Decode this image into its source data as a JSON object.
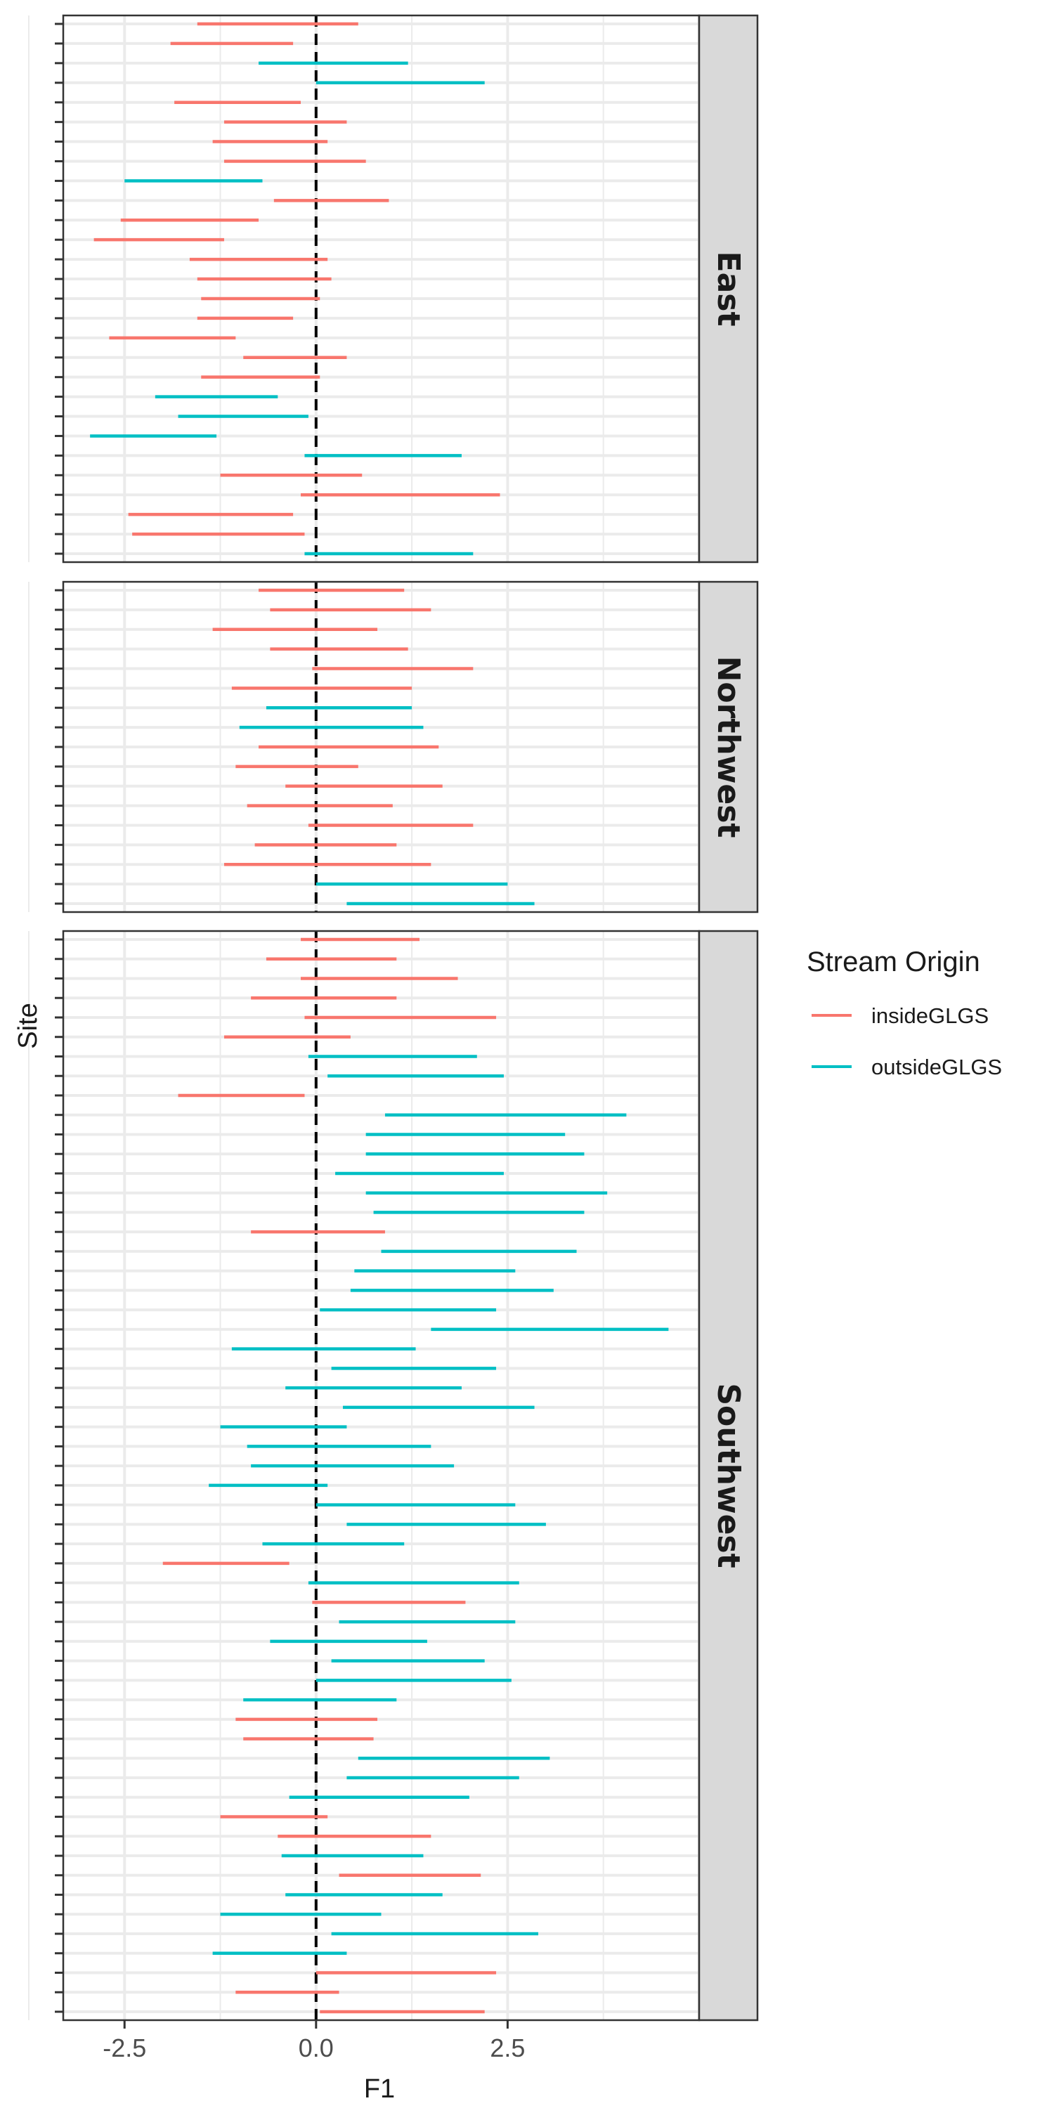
{
  "chart_data": {
    "type": "interval",
    "xlabel": "F1",
    "ylabel": "Site",
    "xlim": [
      -3.3,
      5.0
    ],
    "x_ticks": [
      -2.5,
      0.0,
      2.5
    ],
    "x_tick_labels": [
      "-2.5",
      "0.0",
      "2.5"
    ],
    "reference_line": 0,
    "legend": {
      "title": "Stream Origin",
      "placement": "right",
      "entries": [
        {
          "label": "insideGLGS",
          "color": "#F8766D"
        },
        {
          "label": "outsideGLGS",
          "color": "#00BFC4"
        }
      ]
    },
    "panels": [
      {
        "label": "East",
        "intervals": [
          {
            "origin": "insideGLGS",
            "low": -1.55,
            "high": 0.55
          },
          {
            "origin": "insideGLGS",
            "low": -1.9,
            "high": -0.3
          },
          {
            "origin": "outsideGLGS",
            "low": -0.75,
            "high": 1.2
          },
          {
            "origin": "outsideGLGS",
            "low": 0.0,
            "high": 2.2
          },
          {
            "origin": "insideGLGS",
            "low": -1.85,
            "high": -0.2
          },
          {
            "origin": "insideGLGS",
            "low": -1.2,
            "high": 0.4
          },
          {
            "origin": "insideGLGS",
            "low": -1.35,
            "high": 0.15
          },
          {
            "origin": "insideGLGS",
            "low": -1.2,
            "high": 0.65
          },
          {
            "origin": "outsideGLGS",
            "low": -2.5,
            "high": -0.7
          },
          {
            "origin": "insideGLGS",
            "low": -0.55,
            "high": 0.95
          },
          {
            "origin": "insideGLGS",
            "low": -2.55,
            "high": -0.75
          },
          {
            "origin": "insideGLGS",
            "low": -2.9,
            "high": -1.2
          },
          {
            "origin": "insideGLGS",
            "low": -1.65,
            "high": 0.15
          },
          {
            "origin": "insideGLGS",
            "low": -1.55,
            "high": 0.2
          },
          {
            "origin": "insideGLGS",
            "low": -1.5,
            "high": 0.05
          },
          {
            "origin": "insideGLGS",
            "low": -1.55,
            "high": -0.3
          },
          {
            "origin": "insideGLGS",
            "low": -2.7,
            "high": -1.05
          },
          {
            "origin": "insideGLGS",
            "low": -0.95,
            "high": 0.4
          },
          {
            "origin": "insideGLGS",
            "low": -1.5,
            "high": 0.05
          },
          {
            "origin": "outsideGLGS",
            "low": -2.1,
            "high": -0.5
          },
          {
            "origin": "outsideGLGS",
            "low": -1.8,
            "high": -0.1
          },
          {
            "origin": "outsideGLGS",
            "low": -2.95,
            "high": -1.3
          },
          {
            "origin": "outsideGLGS",
            "low": -0.15,
            "high": 1.9
          },
          {
            "origin": "insideGLGS",
            "low": -1.25,
            "high": 0.6
          },
          {
            "origin": "insideGLGS",
            "low": -0.2,
            "high": 2.4
          },
          {
            "origin": "insideGLGS",
            "low": -2.45,
            "high": -0.3
          },
          {
            "origin": "insideGLGS",
            "low": -2.4,
            "high": -0.15
          },
          {
            "origin": "outsideGLGS",
            "low": -0.15,
            "high": 2.05
          }
        ]
      },
      {
        "label": "Northwest",
        "intervals": [
          {
            "origin": "insideGLGS",
            "low": -0.75,
            "high": 1.15
          },
          {
            "origin": "insideGLGS",
            "low": -0.6,
            "high": 1.5
          },
          {
            "origin": "insideGLGS",
            "low": -1.35,
            "high": 0.8
          },
          {
            "origin": "insideGLGS",
            "low": -0.6,
            "high": 1.2
          },
          {
            "origin": "insideGLGS",
            "low": -0.05,
            "high": 2.05
          },
          {
            "origin": "insideGLGS",
            "low": -1.1,
            "high": 1.25
          },
          {
            "origin": "outsideGLGS",
            "low": -0.65,
            "high": 1.25
          },
          {
            "origin": "outsideGLGS",
            "low": -1.0,
            "high": 1.4
          },
          {
            "origin": "insideGLGS",
            "low": -0.75,
            "high": 1.6
          },
          {
            "origin": "insideGLGS",
            "low": -1.05,
            "high": 0.55
          },
          {
            "origin": "insideGLGS",
            "low": -0.4,
            "high": 1.65
          },
          {
            "origin": "insideGLGS",
            "low": -0.9,
            "high": 1.0
          },
          {
            "origin": "insideGLGS",
            "low": -0.1,
            "high": 2.05
          },
          {
            "origin": "insideGLGS",
            "low": -0.8,
            "high": 1.05
          },
          {
            "origin": "insideGLGS",
            "low": -1.2,
            "high": 1.5
          },
          {
            "origin": "outsideGLGS",
            "low": 0.0,
            "high": 2.5
          },
          {
            "origin": "outsideGLGS",
            "low": 0.4,
            "high": 2.85
          }
        ]
      },
      {
        "label": "Southwest",
        "intervals": [
          {
            "origin": "insideGLGS",
            "low": -0.2,
            "high": 1.35
          },
          {
            "origin": "insideGLGS",
            "low": -0.65,
            "high": 1.05
          },
          {
            "origin": "insideGLGS",
            "low": -0.2,
            "high": 1.85
          },
          {
            "origin": "insideGLGS",
            "low": -0.85,
            "high": 1.05
          },
          {
            "origin": "insideGLGS",
            "low": -0.15,
            "high": 2.35
          },
          {
            "origin": "insideGLGS",
            "low": -1.2,
            "high": 0.45
          },
          {
            "origin": "outsideGLGS",
            "low": -0.1,
            "high": 2.1
          },
          {
            "origin": "outsideGLGS",
            "low": 0.15,
            "high": 2.45
          },
          {
            "origin": "insideGLGS",
            "low": -1.8,
            "high": -0.15
          },
          {
            "origin": "outsideGLGS",
            "low": 0.9,
            "high": 4.05
          },
          {
            "origin": "outsideGLGS",
            "low": 0.65,
            "high": 3.25
          },
          {
            "origin": "outsideGLGS",
            "low": 0.65,
            "high": 3.5
          },
          {
            "origin": "outsideGLGS",
            "low": 0.25,
            "high": 2.45
          },
          {
            "origin": "outsideGLGS",
            "low": 0.65,
            "high": 3.8
          },
          {
            "origin": "outsideGLGS",
            "low": 0.75,
            "high": 3.5
          },
          {
            "origin": "insideGLGS",
            "low": -0.85,
            "high": 0.9
          },
          {
            "origin": "outsideGLGS",
            "low": 0.85,
            "high": 3.4
          },
          {
            "origin": "outsideGLGS",
            "low": 0.5,
            "high": 2.6
          },
          {
            "origin": "outsideGLGS",
            "low": 0.45,
            "high": 3.1
          },
          {
            "origin": "outsideGLGS",
            "low": 0.05,
            "high": 2.35
          },
          {
            "origin": "outsideGLGS",
            "low": 1.5,
            "high": 4.6
          },
          {
            "origin": "outsideGLGS",
            "low": -1.1,
            "high": 1.3
          },
          {
            "origin": "outsideGLGS",
            "low": 0.2,
            "high": 2.35
          },
          {
            "origin": "outsideGLGS",
            "low": -0.4,
            "high": 1.9
          },
          {
            "origin": "outsideGLGS",
            "low": 0.35,
            "high": 2.85
          },
          {
            "origin": "outsideGLGS",
            "low": -1.25,
            "high": 0.4
          },
          {
            "origin": "outsideGLGS",
            "low": -0.9,
            "high": 1.5
          },
          {
            "origin": "outsideGLGS",
            "low": -0.85,
            "high": 1.8
          },
          {
            "origin": "outsideGLGS",
            "low": -1.4,
            "high": 0.15
          },
          {
            "origin": "outsideGLGS",
            "low": 0.0,
            "high": 2.6
          },
          {
            "origin": "outsideGLGS",
            "low": 0.4,
            "high": 3.0
          },
          {
            "origin": "outsideGLGS",
            "low": -0.7,
            "high": 1.15
          },
          {
            "origin": "insideGLGS",
            "low": -2.0,
            "high": -0.35
          },
          {
            "origin": "outsideGLGS",
            "low": -0.1,
            "high": 2.65
          },
          {
            "origin": "insideGLGS",
            "low": -0.05,
            "high": 1.95
          },
          {
            "origin": "outsideGLGS",
            "low": 0.3,
            "high": 2.6
          },
          {
            "origin": "outsideGLGS",
            "low": -0.6,
            "high": 1.45
          },
          {
            "origin": "outsideGLGS",
            "low": 0.2,
            "high": 2.2
          },
          {
            "origin": "outsideGLGS",
            "low": 0.0,
            "high": 2.55
          },
          {
            "origin": "outsideGLGS",
            "low": -0.95,
            "high": 1.05
          },
          {
            "origin": "insideGLGS",
            "low": -1.05,
            "high": 0.8
          },
          {
            "origin": "insideGLGS",
            "low": -0.95,
            "high": 0.75
          },
          {
            "origin": "outsideGLGS",
            "low": 0.55,
            "high": 3.05
          },
          {
            "origin": "outsideGLGS",
            "low": 0.4,
            "high": 2.65
          },
          {
            "origin": "outsideGLGS",
            "low": -0.35,
            "high": 2.0
          },
          {
            "origin": "insideGLGS",
            "low": -1.25,
            "high": 0.15
          },
          {
            "origin": "insideGLGS",
            "low": -0.5,
            "high": 1.5
          },
          {
            "origin": "outsideGLGS",
            "low": -0.45,
            "high": 1.4
          },
          {
            "origin": "insideGLGS",
            "low": 0.3,
            "high": 2.15
          },
          {
            "origin": "outsideGLGS",
            "low": -0.4,
            "high": 1.65
          },
          {
            "origin": "outsideGLGS",
            "low": -1.25,
            "high": 0.85
          },
          {
            "origin": "outsideGLGS",
            "low": 0.2,
            "high": 2.9
          },
          {
            "origin": "outsideGLGS",
            "low": -1.35,
            "high": 0.4
          },
          {
            "origin": "insideGLGS",
            "low": 0.0,
            "high": 2.35
          },
          {
            "origin": "insideGLGS",
            "low": -1.05,
            "high": 0.3
          },
          {
            "origin": "insideGLGS",
            "low": 0.05,
            "high": 2.2
          }
        ]
      }
    ]
  }
}
